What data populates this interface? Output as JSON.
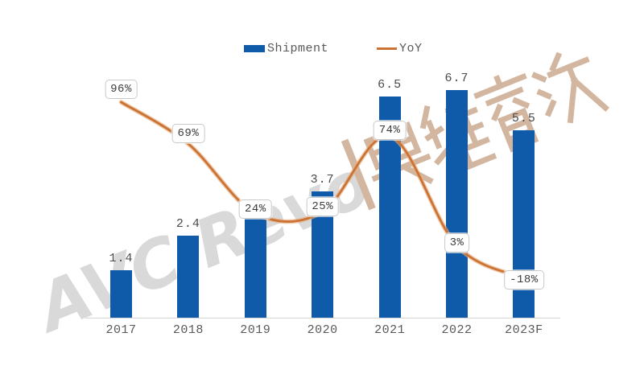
{
  "watermark": {
    "latin": "AVC Revo",
    "separator": "|",
    "cjk": "奥维睿沃",
    "latin_color": "#d9d9d9",
    "cjk_color": "#d3b6a0"
  },
  "colors": {
    "bar": "#0f5aa9",
    "line": "#cc7334",
    "line_halo": "#e6ad7f",
    "axis": "#d6d6d6",
    "text_gray": "#595959"
  },
  "chart_data": {
    "type": "combo",
    "categories": [
      "2017",
      "2018",
      "2019",
      "2020",
      "2021",
      "2022",
      "2023F"
    ],
    "series": [
      {
        "name": "Shipment",
        "type": "bar",
        "color": "#0f5aa9",
        "values": [
          1.4,
          2.4,
          3.0,
          3.7,
          6.5,
          6.7,
          5.5
        ],
        "labels": [
          "1.4",
          "2.4",
          "",
          "3.7",
          "6.5",
          "6.7",
          "5.5"
        ]
      },
      {
        "name": "YoY",
        "type": "line",
        "color": "#cc7334",
        "values_pct": [
          96,
          69,
          24,
          25,
          74,
          3,
          -18
        ],
        "labels": [
          "96%",
          "69%",
          "24%",
          "25%",
          "74%",
          "3%",
          "-18%"
        ]
      }
    ],
    "title": "",
    "xlabel": "",
    "ylabel": "",
    "ylim": [
      0,
      8
    ],
    "grid": false,
    "legend_position": "top"
  }
}
